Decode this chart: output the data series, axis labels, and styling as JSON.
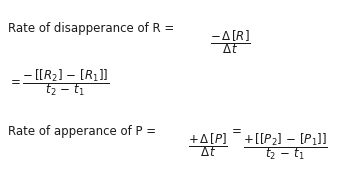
{
  "background_color": "#ffffff",
  "text_color": "#1a1a1a",
  "fontsize": 8.5,
  "line1_text": "Rate of disapperance of R = ",
  "line1_math": "$\\dfrac{-\\,\\Delta\\,[R]}{\\Delta\\,t}$",
  "line2_math": "$= \\dfrac{-\\,[[R_2]\\,-\\,[R_1]]}{t_2\\,-\\,t_1}$",
  "line3_text": "Rate of apperance of P = ",
  "line3_math1": "$\\dfrac{+\\,\\Delta\\,[P]}{\\Delta\\,t}$",
  "line3_eq": " = ",
  "line3_math2": "$\\dfrac{+\\,[[P_2]\\,-\\,[P_1]]}{t_2\\,-\\,t_1}$"
}
